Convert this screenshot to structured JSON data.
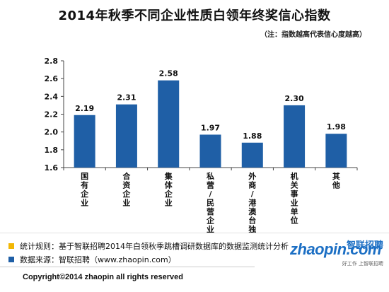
{
  "title": "2014年秋季不同企业性质白领年终奖信心指数",
  "subtitle": "（注：指数越高代表信心度越高）",
  "colors": {
    "bar": "#1f5fa6",
    "note_bullet_1": "#f2b705",
    "note_bullet_2": "#1f5fa6",
    "logo": "#1c6fc4"
  },
  "chart_data": {
    "type": "bar",
    "title": "2014年秋季不同企业性质白领年终奖信心指数",
    "xlabel": "",
    "ylabel": "",
    "categories": [
      "国有企业",
      "合资企业",
      "集体企业",
      "私营/民营企业",
      "外商/港澳台独资",
      "机关事业单位",
      "其他"
    ],
    "values": [
      2.19,
      2.31,
      2.58,
      1.97,
      1.88,
      2.3,
      1.98
    ],
    "value_labels": [
      "2.19",
      "2.31",
      "2.58",
      "1.97",
      "1.88",
      "2.30",
      "1.98"
    ],
    "ylim": [
      1.6,
      2.8
    ],
    "yticks": [
      1.6,
      1.8,
      2.0,
      2.2,
      2.4,
      2.6,
      2.8
    ],
    "ytick_labels": [
      "1.6",
      "1.8",
      "2.0",
      "2.2",
      "2.4",
      "2.6",
      "2.8"
    ],
    "grid": false,
    "legend": "none"
  },
  "footer": {
    "note1": "统计规则：基于智联招聘2014年白领秋季跳槽调研数据库的数据监测统计分析",
    "note2": "数据来源：智联招聘（www.zhaopin.com）",
    "copyright": "Copyright©2014 zhaopin all rights reserved"
  },
  "logo": {
    "main": "zhaopin.com",
    "cn": "智联招聘",
    "tag": "好工作 上智联招聘"
  }
}
